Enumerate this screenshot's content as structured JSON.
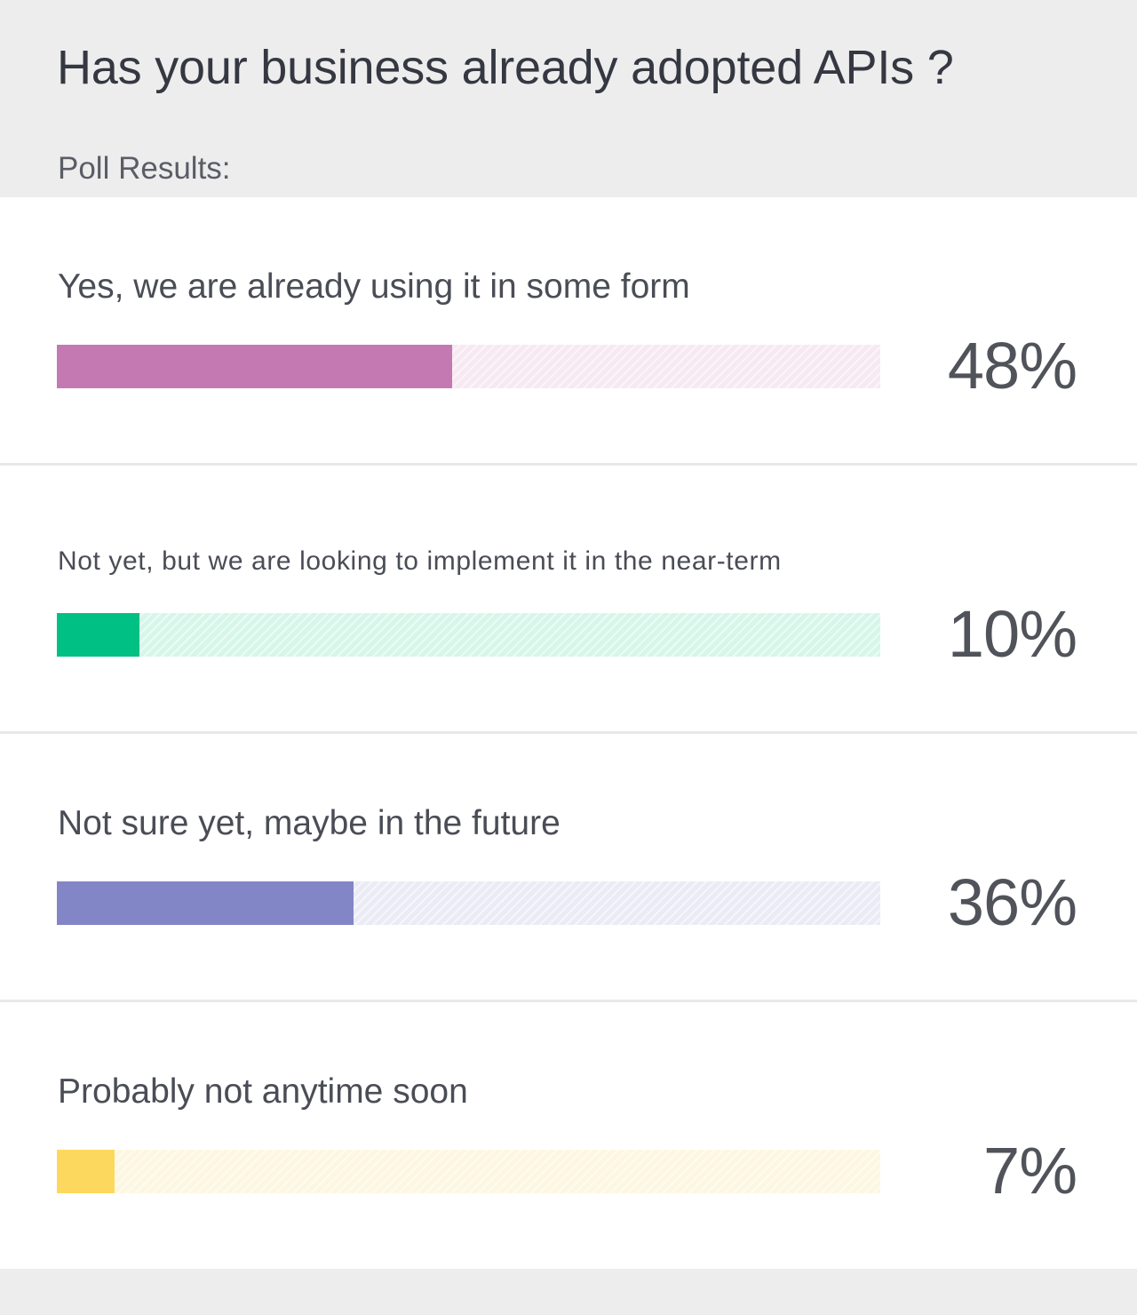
{
  "poll": {
    "question": "Has your business already adopted APIs ?",
    "subtitle": "Poll Results:"
  },
  "options": [
    {
      "label": "Yes, we are already using it in some form",
      "percent_label": "48%",
      "value": 48,
      "color": "#c479b3",
      "track_color": "#f6e9f2"
    },
    {
      "label": "Not yet, but we are looking to implement it in the near-term",
      "percent_label": "10%",
      "value": 10,
      "color": "#00c083",
      "track_color": "#d6f6ea"
    },
    {
      "label": "Not sure yet, maybe in the future",
      "percent_label": "36%",
      "value": 36,
      "color": "#8286c6",
      "track_color": "#ebebf6"
    },
    {
      "label": "Probably not anytime soon",
      "percent_label": "7%",
      "value": 7,
      "color": "#fcd95e",
      "track_color": "#fdf7e2"
    }
  ]
}
